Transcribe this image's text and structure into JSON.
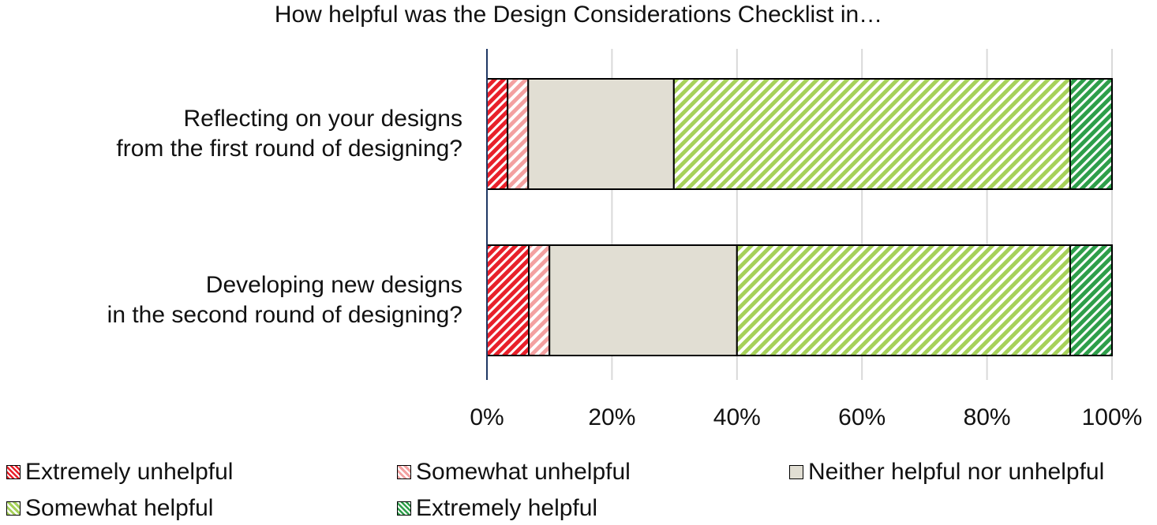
{
  "chart_data": {
    "type": "bar",
    "orientation": "horizontal",
    "stacked": "percent",
    "title": "How helpful was the Design Considerations Checklist in…",
    "categories": [
      [
        "Reflecting on your designs",
        "from the first round of designing?"
      ],
      [
        "Developing new designs",
        "in the second round of designing?"
      ]
    ],
    "series": [
      {
        "name": "Extremely unhelpful",
        "values": [
          3.3,
          6.7
        ],
        "color": "#e8202a",
        "pattern": "stripes-dense"
      },
      {
        "name": "Somewhat unhelpful",
        "values": [
          3.3,
          3.3
        ],
        "color": "#f3a0a0",
        "pattern": "stripes"
      },
      {
        "name": "Neither helpful nor unhelpful",
        "values": [
          23.3,
          30.0
        ],
        "color": "#e1ded3",
        "pattern": "solid"
      },
      {
        "name": "Somewhat helpful",
        "values": [
          63.4,
          53.3
        ],
        "color": "#a6d15a",
        "pattern": "stripes"
      },
      {
        "name": "Extremely helpful",
        "values": [
          6.7,
          6.7
        ],
        "color": "#2e9e4a",
        "pattern": "stripes-dense"
      }
    ],
    "xlim": [
      0,
      100
    ],
    "ticks": [
      "0%",
      "20%",
      "40%",
      "60%",
      "80%",
      "100%"
    ],
    "grid": true,
    "legend_position": "bottom"
  }
}
